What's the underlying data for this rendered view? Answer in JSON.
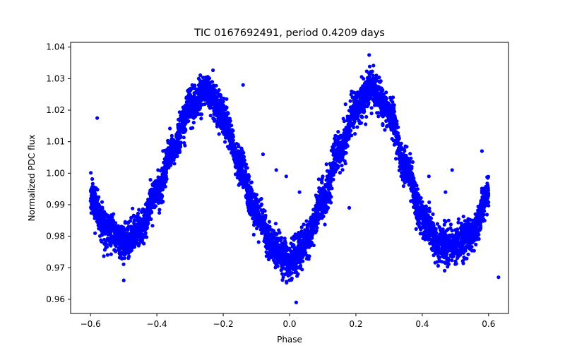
{
  "chart_data": {
    "type": "scatter",
    "title": "TIC 0167692491, period 0.4209 days",
    "xlabel": "Phase",
    "ylabel": "Normalized PDC flux",
    "xlim": [
      -0.66,
      0.66
    ],
    "ylim": [
      0.9555,
      1.0415
    ],
    "xticks": [
      -0.6,
      -0.4,
      -0.2,
      0.0,
      0.2,
      0.4,
      0.6
    ],
    "xtick_labels": [
      "−0.6",
      "−0.4",
      "−0.2",
      "0.0",
      "0.2",
      "0.4",
      "0.6"
    ],
    "yticks": [
      0.96,
      0.97,
      0.98,
      0.99,
      1.0,
      1.01,
      1.02,
      1.03,
      1.04
    ],
    "ytick_labels": [
      "0.96",
      "0.97",
      "0.98",
      "0.99",
      "1.00",
      "1.01",
      "1.02",
      "1.03",
      "1.04"
    ],
    "grid": false,
    "marker_color": "#0000ff",
    "trend": {
      "x": [
        -0.6,
        -0.55,
        -0.5,
        -0.45,
        -0.4,
        -0.35,
        -0.3,
        -0.25,
        -0.2,
        -0.15,
        -0.1,
        -0.05,
        0.0,
        0.05,
        0.1,
        0.15,
        0.2,
        0.25,
        0.3,
        0.35,
        0.4,
        0.45,
        0.5,
        0.55,
        0.6
      ],
      "y": [
        0.9925,
        0.982,
        0.978,
        0.982,
        0.994,
        1.008,
        1.021,
        1.026,
        1.018,
        1.002,
        0.987,
        0.977,
        0.972,
        0.978,
        0.991,
        1.007,
        1.021,
        1.027,
        1.019,
        1.002,
        0.986,
        0.978,
        0.977,
        0.981,
        0.993
      ]
    },
    "outliers": [
      {
        "x": -0.58,
        "y": 1.0175
      },
      {
        "x": -0.4,
        "y": 0.997
      },
      {
        "x": -0.37,
        "y": 1.006
      },
      {
        "x": -0.14,
        "y": 1.028
      },
      {
        "x": -0.08,
        "y": 1.006
      },
      {
        "x": -0.04,
        "y": 1.001
      },
      {
        "x": -0.01,
        "y": 0.999
      },
      {
        "x": 0.03,
        "y": 0.994
      },
      {
        "x": 0.02,
        "y": 0.959
      },
      {
        "x": 0.1,
        "y": 0.999
      },
      {
        "x": 0.18,
        "y": 0.989
      },
      {
        "x": 0.24,
        "y": 1.0375
      },
      {
        "x": 0.42,
        "y": 0.999
      },
      {
        "x": 0.47,
        "y": 0.994
      },
      {
        "x": 0.49,
        "y": 1.001
      },
      {
        "x": 0.58,
        "y": 1.007
      },
      {
        "x": 0.63,
        "y": 0.967
      },
      {
        "x": -0.5,
        "y": 0.966
      }
    ]
  }
}
